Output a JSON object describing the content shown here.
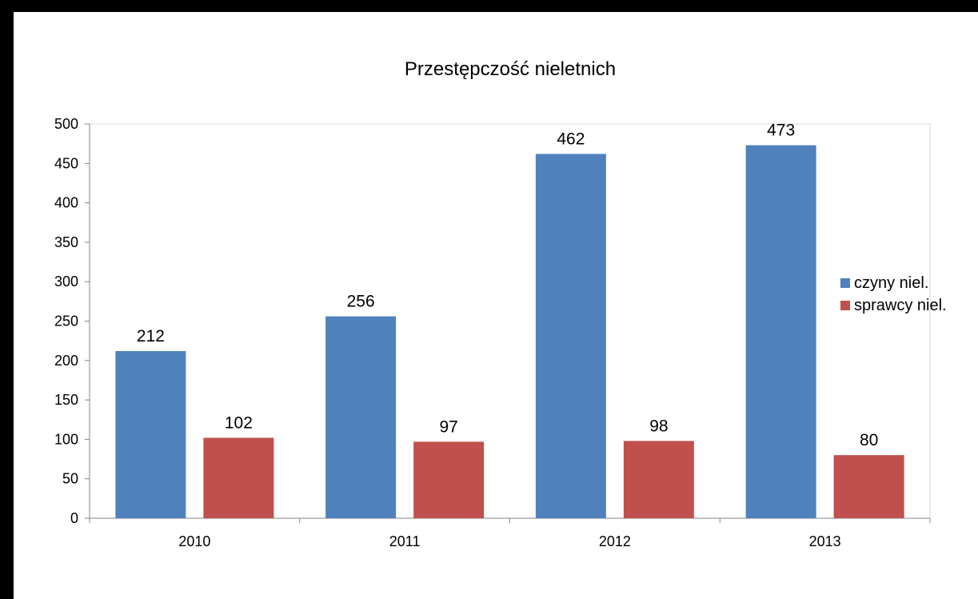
{
  "chart_data": {
    "type": "bar",
    "title": "Przestępczość nieletnich",
    "xlabel": "",
    "ylabel": "",
    "categories": [
      "2010",
      "2011",
      "2012",
      "2013"
    ],
    "series": [
      {
        "name": "czyny niel.",
        "color": "#4F81BD",
        "values": [
          212,
          256,
          462,
          473
        ]
      },
      {
        "name": "sprawcy niel.",
        "color": "#C0504D",
        "values": [
          102,
          97,
          98,
          80
        ]
      }
    ],
    "ylim": [
      0,
      500
    ],
    "yticks": [
      0,
      50,
      100,
      150,
      200,
      250,
      300,
      350,
      400,
      450,
      500
    ],
    "data_labels": true,
    "grid": false,
    "legend_position": "right"
  }
}
